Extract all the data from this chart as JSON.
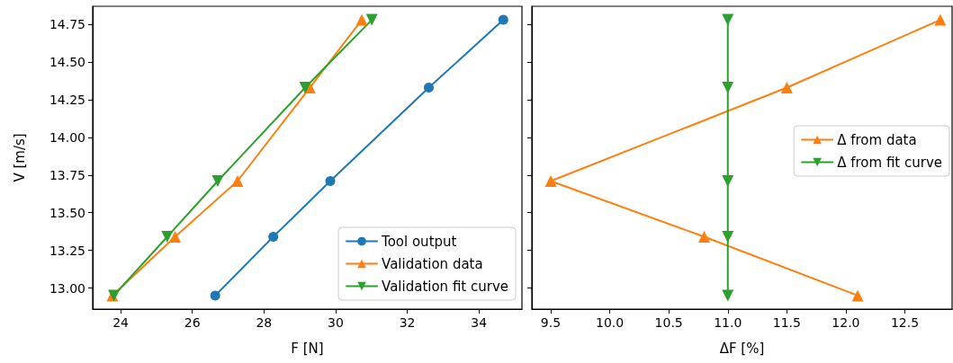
{
  "chart_data": [
    {
      "type": "line",
      "xlabel": "F [N]",
      "ylabel": "V [m/s]",
      "xlim": [
        23.22,
        35.2
      ],
      "xticks": [
        24,
        26,
        28,
        30,
        32,
        34
      ],
      "ylim": [
        12.86,
        14.87
      ],
      "yticks": [
        {
          "value": 13,
          "label": "13.00"
        },
        {
          "value": 13.25,
          "label": "13.25"
        },
        {
          "value": 13.5,
          "label": "13.50"
        },
        {
          "value": 13.75,
          "label": "13.75"
        },
        {
          "value": 14,
          "label": "14.00"
        },
        {
          "value": 14.25,
          "label": "14.25"
        },
        {
          "value": 14.5,
          "label": "14.50"
        },
        {
          "value": 14.75,
          "label": "14.75"
        }
      ],
      "grid": false,
      "legend": "bottom right",
      "line_style": "solid",
      "series": [
        {
          "name": "Tool output",
          "color": "#1f77b4",
          "marker": "circle",
          "x": [
            26.64,
            28.26,
            29.85,
            32.6,
            34.68
          ],
          "values": [
            12.95,
            13.34,
            13.71,
            14.33,
            14.78
          ]
        },
        {
          "name": "Validation data",
          "color": "#ff7f0e",
          "marker": "triangle",
          "x": [
            23.77,
            25.52,
            27.26,
            29.28,
            30.73
          ],
          "values": [
            12.95,
            13.34,
            13.71,
            14.33,
            14.78
          ]
        },
        {
          "name": "Validation fit curve",
          "color": "#2ca02c",
          "marker": "triangle-down",
          "x": [
            23.81,
            25.3,
            26.71,
            29.15,
            31.01
          ],
          "values": [
            12.95,
            13.34,
            13.71,
            14.33,
            14.78
          ]
        }
      ]
    },
    {
      "type": "line",
      "xlabel": "ΔF [%]",
      "xlim": [
        9.34,
        12.9
      ],
      "xticks": [
        9.5,
        {
          "value": 10,
          "label": "10.0"
        },
        10.5,
        {
          "value": 11,
          "label": "11.0"
        },
        11.5,
        {
          "value": 12,
          "label": "12.0"
        },
        12.5
      ],
      "ylim": [
        12.86,
        14.87
      ],
      "yticks": [
        13,
        13.25,
        13.5,
        13.75,
        14,
        14.25,
        14.5,
        14.75
      ],
      "tick_labels": "x",
      "grid": false,
      "legend": "right",
      "line_style": "solid",
      "series": [
        {
          "name": "Δ from data",
          "color": "#ff7f0e",
          "marker": "triangle",
          "x": [
            12.1,
            10.8,
            9.5,
            11.5,
            12.8
          ],
          "values": [
            12.95,
            13.34,
            13.71,
            14.33,
            14.78
          ]
        },
        {
          "name": "Δ from fit curve",
          "color": "#2ca02c",
          "marker": "triangle-down",
          "x": [
            11,
            11,
            11,
            11,
            11
          ],
          "values": [
            12.95,
            13.34,
            13.71,
            14.33,
            14.78
          ]
        }
      ]
    }
  ]
}
